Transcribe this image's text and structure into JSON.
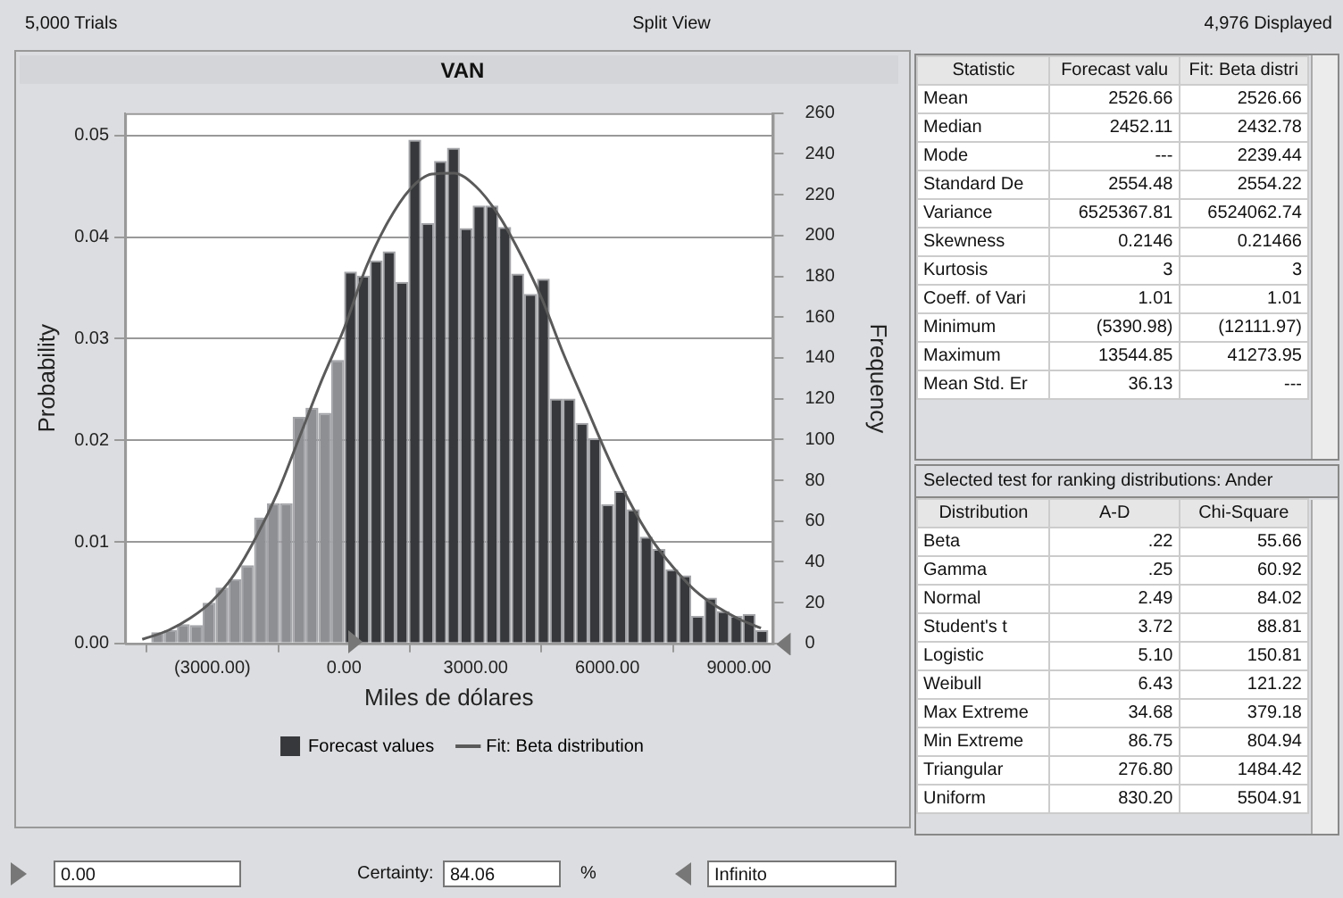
{
  "chart_data": [
    {
      "type": "histogram",
      "title": "VAN",
      "xlabel": "Miles de dólares",
      "ylabel": "Probability",
      "y2label": "Frequency",
      "bins": [
        -4688,
        -4395,
        -4102,
        -3809,
        -3516,
        -3223,
        -2930,
        -2637,
        -2344,
        -2051,
        -1758,
        -1465,
        -1172,
        -879,
        -586,
        -293,
        0,
        293,
        586,
        879,
        1172,
        1465,
        1758,
        2051,
        2344,
        2637,
        2930,
        3223,
        3516,
        3809,
        4102,
        4395,
        4688,
        4981,
        5274,
        5567,
        5860,
        6153,
        6446,
        6739,
        7032,
        7325,
        7618,
        7911,
        8204,
        8497,
        8790,
        9083,
        9376,
        9669
      ],
      "series": [
        {
          "name": "Forecast values",
          "type": "histogram",
          "color": "#36383b",
          "colors": [
            "#8e8f93",
            "#8e8f93",
            "#8e8f93",
            "#8e8f93",
            "#8e8f93",
            "#8e8f93",
            "#8e8f93",
            "#8e8f93",
            "#8e8f93",
            "#8e8f93",
            "#8e8f93",
            "#8e8f93",
            "#8e8f93",
            "#8e8f93",
            "#8e8f93",
            "#8e8f93",
            "#36383b",
            "#36383b",
            "#36383b",
            "#36383b",
            "#36383b",
            "#36383b",
            "#36383b",
            "#36383b",
            "#36383b",
            "#36383b",
            "#36383b",
            "#36383b",
            "#36383b",
            "#36383b",
            "#36383b",
            "#36383b",
            "#36383b",
            "#36383b",
            "#36383b",
            "#36383b",
            "#36383b",
            "#36383b",
            "#36383b",
            "#36383b",
            "#36383b",
            "#36383b",
            "#36383b",
            "#36383b",
            "#36383b",
            "#36383b",
            "#36383b",
            "#36383b",
            "#36383b"
          ],
          "values": [
            0.0001,
            0.0011,
            0.0013,
            0.0019,
            0.0018,
            0.004,
            0.0055,
            0.0063,
            0.0077,
            0.0124,
            0.0138,
            0.0138,
            0.0223,
            0.0232,
            0.0227,
            0.0279,
            0.0366,
            0.0362,
            0.0377,
            0.0386,
            0.0356,
            0.0496,
            0.0414,
            0.0475,
            0.0488,
            0.0409,
            0.0431,
            0.0431,
            0.041,
            0.0364,
            0.0344,
            0.0359,
            0.0241,
            0.0241,
            0.0217,
            0.0202,
            0.0137,
            0.015,
            0.0132,
            0.0105,
            0.0093,
            0.0073,
            0.0067,
            0.0027,
            0.0045,
            0.0032,
            0.0027,
            0.0029,
            0.0013
          ]
        },
        {
          "name": "Fit: Beta distribution",
          "type": "line",
          "color": "#5a5a5a",
          "x": [
            -4600,
            -4000,
            -3500,
            -3000,
            -2500,
            -2000,
            -1500,
            -1000,
            -500,
            0,
            500,
            1000,
            1500,
            2000,
            2500,
            3000,
            3500,
            4000,
            4500,
            5000,
            5500,
            6000,
            6500,
            7000,
            7500,
            8000,
            8500,
            9000,
            9500
          ],
          "values": [
            0.0004,
            0.0013,
            0.0025,
            0.0042,
            0.0068,
            0.0105,
            0.015,
            0.0205,
            0.026,
            0.031,
            0.037,
            0.0415,
            0.0447,
            0.0462,
            0.0463,
            0.045,
            0.0423,
            0.0385,
            0.034,
            0.0285,
            0.0235,
            0.0185,
            0.014,
            0.0103,
            0.0075,
            0.0052,
            0.0036,
            0.0024,
            0.0015
          ]
        }
      ],
      "xlim": [
        -4990,
        9770
      ],
      "xticks": [
        {
          "value": -3000,
          "label": "(3000.00)"
        },
        {
          "value": 0,
          "label": "0.00"
        },
        {
          "value": 3000,
          "label": "3000.00"
        },
        {
          "value": 6000,
          "label": "6000.00"
        },
        {
          "value": 9000,
          "label": "9000.00"
        }
      ],
      "ylim": [
        0,
        0.0522
      ],
      "yticks": [
        {
          "value": 0,
          "label": "0.00"
        },
        {
          "value": 0.01,
          "label": "0.01"
        },
        {
          "value": 0.02,
          "label": "0.02"
        },
        {
          "value": 0.03,
          "label": "0.03"
        },
        {
          "value": 0.04,
          "label": "0.04"
        },
        {
          "value": 0.05,
          "label": "0.05"
        }
      ],
      "y2lim": [
        0,
        260
      ],
      "y2ticks": [
        0,
        20,
        40,
        60,
        80,
        100,
        120,
        140,
        160,
        180,
        200,
        220,
        240,
        260
      ],
      "grid": "y",
      "legend": "bottom",
      "annotations": [
        "5,000 Trials",
        "Split View",
        "4,976 Displayed",
        "0.00",
        "Certainty:",
        "84.06",
        "%",
        "Infinito"
      ]
    },
    {
      "type": "other",
      "annotations": [
        "Statistic",
        "Forecast valu",
        "Fit: Beta distri",
        "Mean",
        "2526.66",
        "2526.66",
        "Median",
        "2452.11",
        "2432.78",
        "Mode",
        "---",
        "2239.44",
        "Standard De",
        "2554.48",
        "2554.22",
        "Variance",
        "6525367.81",
        "6524062.74",
        "Skewness",
        "0.2146",
        "0.21466",
        "Kurtosis",
        "3",
        "3",
        "Coeff.  of Vari",
        "1.01",
        "1.01",
        "Minimum",
        "(5390.98)",
        "(12111.97)",
        "Maximum",
        "13544.85",
        "41273.95",
        "Mean Std. Er",
        "36.13",
        "---"
      ]
    },
    {
      "type": "other",
      "title": "Selected test for ranking distributions: Ander",
      "annotations": [
        "Distribution",
        "A-D",
        "Chi-Square",
        "Beta",
        ".22",
        "55.66",
        "Gamma",
        ".25",
        "60.92",
        "Normal",
        "2.49",
        "84.02",
        "Student's t",
        "3.72",
        "88.81",
        "Logistic",
        "5.10",
        "150.81",
        "Weibull",
        "6.43",
        "121.22",
        "Max Extreme",
        "34.68",
        "379.18",
        "Min Extreme",
        "86.75",
        "804.94",
        "Triangular",
        "276.80",
        "1484.42",
        "Uniform",
        "830.20",
        "5504.91"
      ]
    }
  ]
}
